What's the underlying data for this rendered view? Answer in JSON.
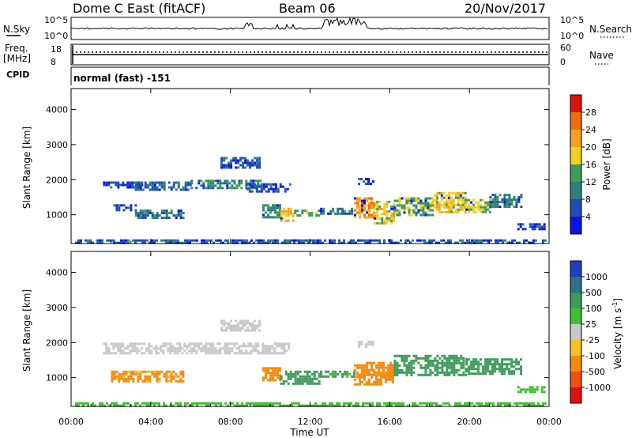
{
  "header": {
    "station": "Dome C East (fitACF)",
    "beam": "Beam 06",
    "date": "20/Nov/2017"
  },
  "strip_panels": {
    "nsky_label": "N.Sky",
    "nsky_ticks": [
      "10^5",
      "10^0"
    ],
    "nsearch_label": "N.Search",
    "nsearch_ticks": [
      "10^5",
      "10^0"
    ],
    "freq_label": "Freq.",
    "freq_unit": "[MHz]",
    "freq_ticks": [
      "18",
      "8"
    ],
    "nave_label": "Nave",
    "nave_ticks": [
      "60",
      "0"
    ],
    "cpid_label": "CPID",
    "cpid_text": "normal (fast) -151"
  },
  "colors": {
    "power_scale": [
      "#0a14e6",
      "#1f4db8",
      "#2e7f7a",
      "#3d9a5a",
      "#f0d020",
      "#f5a020",
      "#f06a10",
      "#e01010"
    ],
    "velocity_scale": [
      "#e01010",
      "#ee5010",
      "#f58a10",
      "#f8c020",
      "#c8c8c8",
      "#3fc030",
      "#3d9a5a",
      "#2e6f8a",
      "#1f3fc0"
    ]
  },
  "chart_data": [
    {
      "type": "heatmap",
      "name": "power",
      "xlabel": "",
      "ylabel": "Slant Range [km]",
      "x_unit": "hours UT",
      "xlim": [
        0,
        24
      ],
      "ylim": [
        180,
        4600
      ],
      "yticks": [
        "1000",
        "2000",
        "3000",
        "4000"
      ],
      "colorbar_label": "Power [dB]",
      "colorbar_ticks": [
        "4",
        "8",
        "12",
        "16",
        "20",
        "24",
        "28"
      ],
      "color_range": [
        0,
        32
      ],
      "regions": [
        {
          "t0": 1.6,
          "t1": 3.6,
          "r0": 1750,
          "r1": 1950,
          "v": 5
        },
        {
          "t0": 3.2,
          "t1": 6.0,
          "r0": 1700,
          "r1": 1950,
          "v": 8
        },
        {
          "t0": 6.0,
          "t1": 9.5,
          "r0": 1750,
          "r1": 2000,
          "v": 11
        },
        {
          "t0": 8.8,
          "t1": 11.0,
          "r0": 1650,
          "r1": 1900,
          "v": 6
        },
        {
          "t0": 7.5,
          "t1": 9.5,
          "r0": 2350,
          "r1": 2650,
          "v": 6
        },
        {
          "t0": 2.0,
          "t1": 3.2,
          "r0": 1150,
          "r1": 1300,
          "v": 6
        },
        {
          "t0": 3.2,
          "t1": 5.6,
          "r0": 900,
          "r1": 1150,
          "v": 10
        },
        {
          "t0": 9.6,
          "t1": 10.5,
          "r0": 900,
          "r1": 1300,
          "v": 12
        },
        {
          "t0": 10.5,
          "t1": 11.2,
          "r0": 850,
          "r1": 1200,
          "v": 20
        },
        {
          "t0": 11.2,
          "t1": 12.5,
          "r0": 950,
          "r1": 1150,
          "v": 14
        },
        {
          "t0": 12.5,
          "t1": 14.2,
          "r0": 1000,
          "r1": 1200,
          "v": 10
        },
        {
          "t0": 14.2,
          "t1": 15.2,
          "r0": 950,
          "r1": 1500,
          "v": 22
        },
        {
          "t0": 15.2,
          "t1": 16.2,
          "r0": 750,
          "r1": 1400,
          "v": 18
        },
        {
          "t0": 16.2,
          "t1": 18.2,
          "r0": 1000,
          "r1": 1500,
          "v": 14
        },
        {
          "t0": 18.2,
          "t1": 19.8,
          "r0": 1100,
          "r1": 1650,
          "v": 18
        },
        {
          "t0": 19.8,
          "t1": 21.0,
          "r0": 1100,
          "r1": 1450,
          "v": 16
        },
        {
          "t0": 21.0,
          "t1": 22.6,
          "r0": 1250,
          "r1": 1600,
          "v": 10
        },
        {
          "t0": 22.4,
          "t1": 23.8,
          "r0": 580,
          "r1": 760,
          "v": 5
        },
        {
          "t0": 14.4,
          "t1": 15.2,
          "r0": 1850,
          "r1": 2050,
          "v": 6
        },
        {
          "t0": 0.2,
          "t1": 23.8,
          "r0": 220,
          "r1": 300,
          "v": 7
        }
      ]
    },
    {
      "type": "heatmap",
      "name": "velocity",
      "xlabel": "Time UT",
      "ylabel": "Slant Range [km]",
      "x_unit": "hours UT",
      "xlim": [
        0,
        24
      ],
      "ylim": [
        180,
        4600
      ],
      "xticks": [
        "00:00",
        "04:00",
        "08:00",
        "12:00",
        "16:00",
        "20:00",
        "00:00"
      ],
      "yticks": [
        "1000",
        "2000",
        "3000",
        "4000"
      ],
      "colorbar_label": "Velocity [m s",
      "colorbar_unit_exponent": "-1",
      "colorbar_ticks": [
        "-1000",
        "-500",
        "-100",
        "-25",
        "25",
        "100",
        "500",
        "1000"
      ],
      "regions": [
        {
          "t0": 1.6,
          "t1": 11.0,
          "r0": 1700,
          "r1": 2000,
          "v": 0
        },
        {
          "t0": 7.5,
          "t1": 9.5,
          "r0": 2350,
          "r1": 2650,
          "v": 0
        },
        {
          "t0": 2.0,
          "t1": 5.6,
          "r0": 900,
          "r1": 1200,
          "v": -150
        },
        {
          "t0": 9.6,
          "t1": 10.5,
          "r0": 900,
          "r1": 1300,
          "v": -300
        },
        {
          "t0": 10.5,
          "t1": 12.5,
          "r0": 850,
          "r1": 1200,
          "v": 200
        },
        {
          "t0": 12.5,
          "t1": 14.2,
          "r0": 1000,
          "r1": 1200,
          "v": 150
        },
        {
          "t0": 14.2,
          "t1": 16.2,
          "r0": 800,
          "r1": 1450,
          "v": -200
        },
        {
          "t0": 16.2,
          "t1": 19.8,
          "r0": 1050,
          "r1": 1650,
          "v": 300
        },
        {
          "t0": 19.8,
          "t1": 22.6,
          "r0": 1100,
          "r1": 1550,
          "v": 200
        },
        {
          "t0": 22.4,
          "t1": 23.8,
          "r0": 580,
          "r1": 760,
          "v": 60
        },
        {
          "t0": 14.4,
          "t1": 15.2,
          "r0": 1850,
          "r1": 2050,
          "v": 0
        },
        {
          "t0": 0.2,
          "t1": 23.8,
          "r0": 220,
          "r1": 300,
          "v": 60
        }
      ]
    }
  ]
}
